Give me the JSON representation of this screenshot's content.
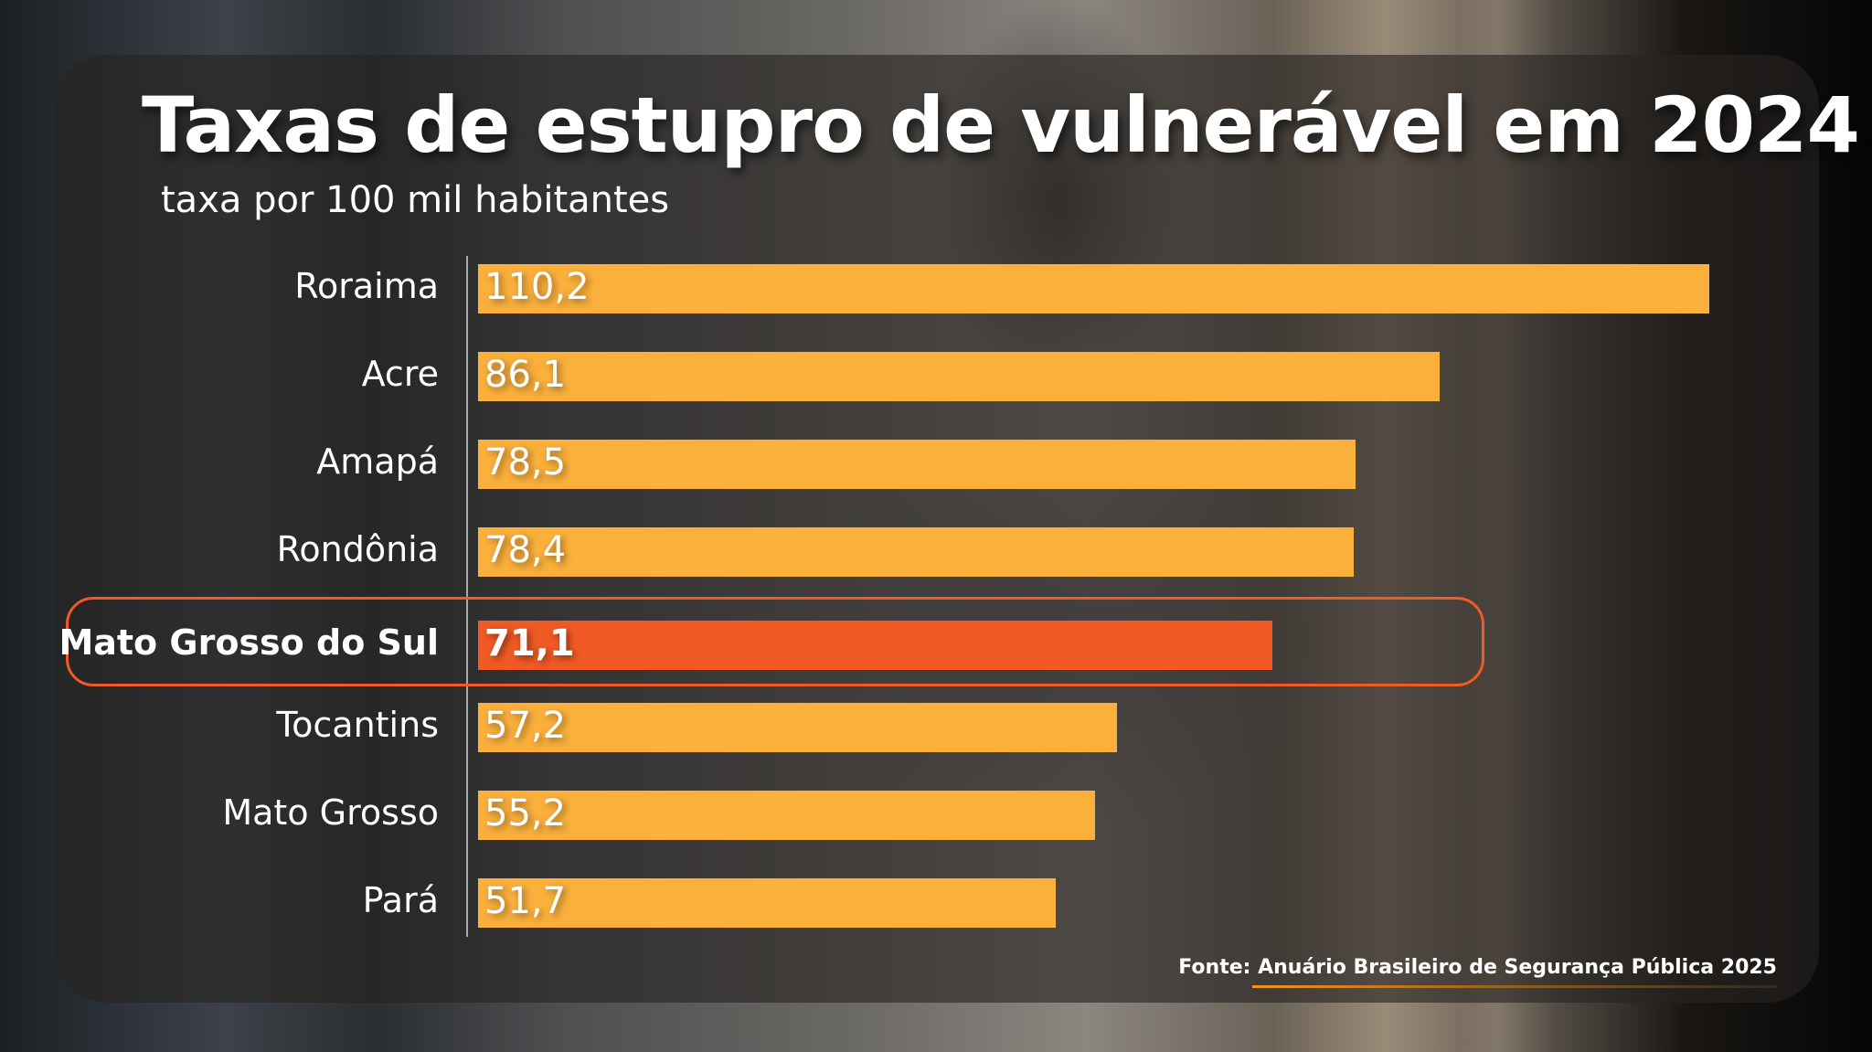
{
  "chart_data": {
    "type": "bar",
    "orientation": "horizontal",
    "title": "Taxas de estupro de vulnerável em 2024",
    "subtitle": "taxa por 100 mil habitantes",
    "categories": [
      "Roraima",
      "Acre",
      "Amapá",
      "Rondônia",
      "Mato Grosso do Sul",
      "Tocantins",
      "Mato Grosso",
      "Pará"
    ],
    "values": [
      110.2,
      86.1,
      78.5,
      78.4,
      71.1,
      57.2,
      55.2,
      51.7
    ],
    "value_labels": [
      "110,2",
      "86,1",
      "78,5",
      "78,4",
      "71,1",
      "57,2",
      "55,2",
      "51,7"
    ],
    "highlighted": "Mato Grosso do Sul",
    "xlabel": "",
    "ylabel": "",
    "xlim": [
      0,
      110.2
    ],
    "grid": false,
    "legend": "none",
    "colors": {
      "bar": "#fbb03b",
      "highlight": "#f15a24"
    },
    "source": "Fonte: Anuário Brasileiro de Segurança Pública 2025"
  }
}
